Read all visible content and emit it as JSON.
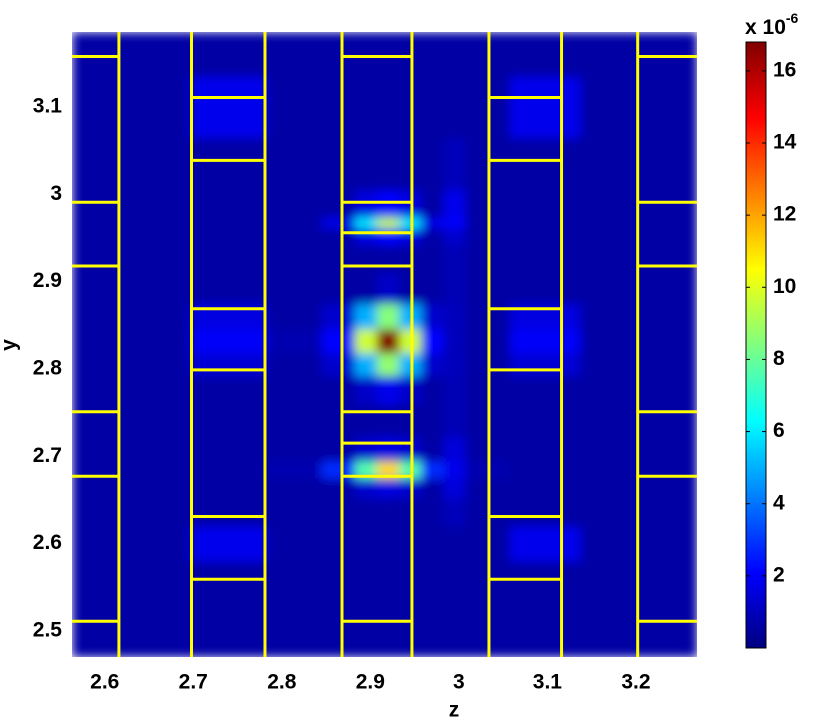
{
  "chart_data": {
    "type": "heatmap",
    "xlabel": "z",
    "ylabel": "y",
    "colorbar_title": "x 10",
    "colorbar_exponent": "-6",
    "colormap": "jet",
    "xlim": [
      2.563,
      3.269
    ],
    "ylim": [
      2.47,
      3.186
    ],
    "xticks": [
      2.6,
      2.7,
      2.8,
      2.9,
      3,
      3.1,
      3.2
    ],
    "yticks": [
      2.5,
      2.6,
      2.7,
      2.8,
      2.9,
      3,
      3.1
    ],
    "clim": [
      0,
      16.8
    ],
    "cticks": [
      2,
      4,
      6,
      8,
      10,
      12,
      14,
      16
    ],
    "x": [
      2.57,
      2.65,
      2.745,
      2.82,
      2.87,
      2.895,
      2.92,
      2.945,
      2.97,
      2.995,
      3.02,
      3.095,
      3.18,
      3.26
    ],
    "y": [
      2.48,
      2.56,
      2.6,
      2.64,
      2.665,
      2.685,
      2.705,
      2.74,
      2.78,
      2.805,
      2.832,
      2.86,
      2.89,
      2.93,
      2.955,
      2.968,
      2.98,
      3.03,
      3.1,
      3.17
    ],
    "values": [
      [
        0.6,
        0.6,
        0.6,
        0.6,
        0.6,
        0.6,
        0.6,
        0.6,
        0.6,
        0.6,
        0.6,
        0.6,
        0.6,
        0.6
      ],
      [
        0.6,
        0.6,
        0.6,
        0.6,
        0.6,
        0.6,
        0.6,
        0.6,
        0.6,
        0.6,
        0.6,
        0.6,
        0.6,
        0.6
      ],
      [
        0.6,
        0.6,
        1.8,
        0.6,
        0.6,
        0.6,
        0.6,
        0.6,
        0.6,
        0.6,
        0.6,
        1.8,
        0.6,
        0.6
      ],
      [
        0.6,
        0.6,
        0.6,
        0.6,
        0.6,
        0.6,
        0.6,
        0.6,
        0.6,
        1.0,
        0.6,
        0.6,
        0.6,
        0.6
      ],
      [
        0.6,
        0.6,
        0.6,
        0.6,
        0.6,
        1.3,
        1.6,
        1.3,
        0.6,
        1.5,
        0.6,
        0.6,
        0.6,
        0.6
      ],
      [
        0.6,
        0.6,
        0.6,
        0.8,
        2.8,
        7.7,
        11.1,
        7.7,
        2.8,
        1.8,
        0.8,
        0.6,
        0.6,
        0.6
      ],
      [
        0.6,
        0.6,
        0.6,
        0.6,
        0.6,
        1.3,
        1.6,
        1.3,
        0.6,
        1.5,
        0.6,
        0.6,
        0.6,
        0.6
      ],
      [
        0.6,
        0.6,
        0.6,
        0.6,
        0.6,
        0.6,
        0.6,
        0.6,
        0.6,
        0.9,
        0.6,
        0.6,
        0.6,
        0.6
      ],
      [
        0.6,
        0.6,
        0.6,
        0.6,
        0.6,
        1.2,
        1.8,
        1.2,
        0.6,
        0.9,
        0.6,
        0.6,
        0.6,
        0.6
      ],
      [
        0.6,
        0.6,
        1.4,
        0.6,
        1.3,
        5.0,
        8.7,
        5.0,
        1.3,
        1.0,
        0.6,
        1.4,
        0.6,
        0.6
      ],
      [
        0.6,
        0.6,
        2.0,
        0.8,
        2.1,
        9.7,
        16.8,
        9.7,
        2.1,
        1.0,
        0.6,
        2.0,
        0.6,
        0.6
      ],
      [
        0.6,
        0.6,
        1.6,
        0.6,
        1.3,
        5.0,
        8.5,
        5.0,
        1.3,
        1.0,
        0.6,
        1.6,
        0.6,
        0.6
      ],
      [
        0.6,
        0.6,
        0.6,
        0.6,
        0.6,
        0.6,
        1.2,
        0.6,
        0.6,
        0.9,
        0.6,
        0.6,
        0.6,
        0.6
      ],
      [
        0.6,
        0.6,
        0.6,
        0.6,
        0.6,
        0.6,
        0.6,
        0.6,
        0.6,
        0.9,
        0.6,
        0.6,
        0.6,
        0.6
      ],
      [
        0.6,
        0.6,
        0.6,
        0.6,
        0.6,
        1.6,
        2.2,
        1.6,
        0.6,
        1.3,
        0.6,
        0.6,
        0.6,
        0.6
      ],
      [
        0.6,
        0.6,
        0.6,
        0.6,
        1.8,
        6.0,
        9.6,
        6.0,
        1.8,
        2.2,
        0.6,
        0.6,
        0.6,
        0.6
      ],
      [
        0.6,
        0.6,
        0.6,
        0.6,
        0.6,
        1.6,
        2.2,
        1.6,
        0.6,
        1.8,
        0.6,
        0.6,
        0.6,
        0.6
      ],
      [
        0.6,
        0.6,
        0.6,
        0.6,
        0.6,
        0.6,
        0.6,
        0.6,
        0.6,
        1.0,
        0.6,
        0.6,
        0.6,
        0.6
      ],
      [
        0.6,
        0.6,
        1.8,
        0.6,
        0.6,
        0.6,
        0.6,
        0.6,
        0.6,
        0.6,
        0.6,
        1.8,
        0.6,
        0.6
      ],
      [
        0.6,
        0.6,
        0.6,
        0.6,
        0.6,
        0.6,
        0.6,
        0.6,
        0.6,
        0.6,
        0.6,
        0.6,
        0.6,
        0.6
      ]
    ],
    "line_color": "#ffff00",
    "structure": [
      {
        "z": [
          2.563,
          2.616
        ],
        "y": [
          3.158,
          2.991,
          2.918,
          2.751,
          2.677,
          2.511
        ]
      },
      {
        "z": [
          2.698,
          2.781
        ],
        "y": [
          3.111,
          3.039,
          2.869,
          2.799,
          2.631,
          2.559
        ]
      },
      {
        "z": [
          2.868,
          2.947
        ],
        "y": [
          3.158,
          2.991,
          2.956,
          2.918,
          2.751,
          2.715,
          2.677,
          2.511
        ]
      },
      {
        "z": [
          3.034,
          3.116
        ],
        "y": [
          3.111,
          3.039,
          2.869,
          2.799,
          2.631,
          2.559
        ]
      },
      {
        "z": [
          3.202,
          3.269
        ],
        "y": [
          3.158,
          2.991,
          2.918,
          2.751,
          2.677,
          2.511
        ]
      }
    ]
  }
}
